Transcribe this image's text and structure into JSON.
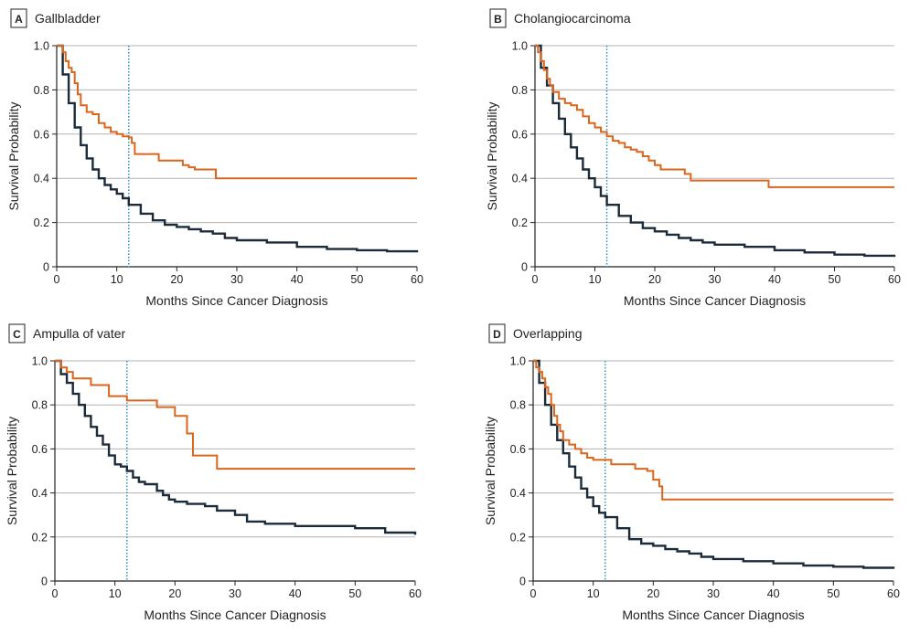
{
  "colors": {
    "overall": "#1c2b3a",
    "subgroup": "#d9661c",
    "marker": "#2a8fbd",
    "grid": "#b3b3b3",
    "axis": "#222222"
  },
  "chart_data": [
    {
      "type": "line",
      "panel_letter": "A",
      "title": "Gallbladder",
      "xlabel": "Months Since Cancer Diagnosis",
      "ylabel": "Survival Probability",
      "xlim": [
        0,
        60
      ],
      "ylim": [
        0,
        1
      ],
      "x_ticks": [
        "0",
        "10",
        "20",
        "30",
        "40",
        "50",
        "60"
      ],
      "y_ticks": [
        "0",
        "0.2",
        "0.4",
        "0.6",
        "0.8",
        "1.0"
      ],
      "grid": "horizontal",
      "reference_line_x": 12,
      "series": [
        {
          "color_key": "subgroup",
          "step": true,
          "x": [
            0,
            1,
            1.5,
            2,
            2.5,
            3,
            3.5,
            4,
            5,
            6,
            7,
            8,
            9,
            10,
            11,
            12,
            12.5,
            13,
            14,
            15,
            16,
            17,
            18,
            20,
            21,
            22,
            23,
            24,
            26.5,
            60
          ],
          "y": [
            1.0,
            0.97,
            0.93,
            0.9,
            0.88,
            0.83,
            0.78,
            0.73,
            0.7,
            0.69,
            0.65,
            0.63,
            0.61,
            0.6,
            0.59,
            0.585,
            0.56,
            0.51,
            0.51,
            0.51,
            0.51,
            0.48,
            0.48,
            0.48,
            0.46,
            0.45,
            0.44,
            0.44,
            0.4,
            0.4
          ]
        },
        {
          "color_key": "overall",
          "step": true,
          "x": [
            0,
            1,
            2,
            3,
            4,
            5,
            6,
            7,
            8,
            9,
            10,
            11,
            12,
            14,
            16,
            18,
            20,
            22,
            24,
            26,
            28,
            30,
            35,
            40,
            45,
            50,
            55,
            60
          ],
          "y": [
            1.0,
            0.87,
            0.74,
            0.63,
            0.55,
            0.49,
            0.44,
            0.4,
            0.37,
            0.35,
            0.33,
            0.31,
            0.28,
            0.24,
            0.21,
            0.19,
            0.18,
            0.17,
            0.16,
            0.15,
            0.13,
            0.12,
            0.11,
            0.09,
            0.08,
            0.075,
            0.07,
            0.065
          ]
        }
      ]
    },
    {
      "type": "line",
      "panel_letter": "B",
      "title": "Cholangiocarcinoma",
      "xlabel": "Months Since Cancer Diagnosis",
      "ylabel": "Survival Probability",
      "xlim": [
        0,
        60
      ],
      "ylim": [
        0,
        1
      ],
      "x_ticks": [
        "0",
        "10",
        "20",
        "30",
        "40",
        "50",
        "60"
      ],
      "y_ticks": [
        "0",
        "0.2",
        "0.4",
        "0.6",
        "0.8",
        "1.0"
      ],
      "grid": "horizontal",
      "reference_line_x": 12,
      "series": [
        {
          "color_key": "subgroup",
          "step": true,
          "x": [
            0,
            0.5,
            1,
            1.5,
            2,
            2.5,
            3,
            4,
            5,
            6,
            7,
            8,
            9,
            10,
            11,
            12,
            13,
            14,
            15,
            16,
            17,
            18,
            19,
            20,
            21,
            22,
            25,
            26,
            38.5,
            39,
            60
          ],
          "y": [
            1.0,
            0.97,
            0.93,
            0.89,
            0.85,
            0.82,
            0.79,
            0.76,
            0.74,
            0.73,
            0.71,
            0.68,
            0.65,
            0.63,
            0.61,
            0.59,
            0.57,
            0.56,
            0.54,
            0.53,
            0.52,
            0.5,
            0.48,
            0.46,
            0.44,
            0.44,
            0.42,
            0.39,
            0.39,
            0.36,
            0.36
          ]
        },
        {
          "color_key": "overall",
          "step": true,
          "x": [
            0,
            1,
            2,
            3,
            4,
            5,
            6,
            7,
            8,
            9,
            10,
            11,
            12,
            14,
            16,
            18,
            20,
            22,
            24,
            26,
            28,
            30,
            35,
            40,
            45,
            50,
            55,
            60
          ],
          "y": [
            1.0,
            0.9,
            0.82,
            0.74,
            0.67,
            0.6,
            0.54,
            0.49,
            0.44,
            0.4,
            0.36,
            0.32,
            0.28,
            0.23,
            0.2,
            0.175,
            0.16,
            0.145,
            0.13,
            0.12,
            0.11,
            0.1,
            0.09,
            0.075,
            0.065,
            0.055,
            0.05,
            0.045
          ]
        }
      ]
    },
    {
      "type": "line",
      "panel_letter": "C",
      "title": "Ampulla of vater",
      "xlabel": "Months Since Cancer Diagnosis",
      "ylabel": "Survival Probability",
      "xlim": [
        0,
        60
      ],
      "ylim": [
        0,
        1
      ],
      "x_ticks": [
        "0",
        "10",
        "20",
        "30",
        "40",
        "50",
        "60"
      ],
      "y_ticks": [
        "0",
        "0.2",
        "0.4",
        "0.6",
        "0.8",
        "1.0"
      ],
      "grid": "horizontal",
      "reference_line_x": 12,
      "series": [
        {
          "color_key": "subgroup",
          "step": true,
          "x": [
            0,
            1,
            2,
            3,
            6,
            9,
            12,
            14,
            17,
            18,
            20,
            21,
            22,
            23,
            27,
            60
          ],
          "y": [
            1.0,
            0.97,
            0.95,
            0.92,
            0.89,
            0.84,
            0.82,
            0.82,
            0.79,
            0.79,
            0.75,
            0.75,
            0.67,
            0.57,
            0.51,
            0.51
          ]
        },
        {
          "color_key": "overall",
          "step": true,
          "x": [
            0,
            1,
            2,
            3,
            4,
            5,
            6,
            7,
            8,
            9,
            10,
            11,
            12,
            13,
            14,
            15,
            17,
            18,
            19,
            20,
            22,
            25,
            27,
            30,
            32,
            35,
            40,
            45,
            50,
            55,
            60
          ],
          "y": [
            1.0,
            0.94,
            0.9,
            0.85,
            0.8,
            0.75,
            0.7,
            0.66,
            0.62,
            0.57,
            0.53,
            0.52,
            0.5,
            0.47,
            0.45,
            0.44,
            0.41,
            0.39,
            0.37,
            0.36,
            0.35,
            0.34,
            0.32,
            0.3,
            0.27,
            0.26,
            0.25,
            0.25,
            0.24,
            0.22,
            0.21
          ]
        }
      ]
    },
    {
      "type": "line",
      "panel_letter": "D",
      "title": "Overlapping",
      "xlabel": "Months Since Cancer Diagnosis",
      "ylabel": "Survival Probability",
      "xlim": [
        0,
        60
      ],
      "ylim": [
        0,
        1
      ],
      "x_ticks": [
        "0",
        "10",
        "20",
        "30",
        "40",
        "50",
        "60"
      ],
      "y_ticks": [
        "0",
        "0.2",
        "0.4",
        "0.6",
        "0.8",
        "1.0"
      ],
      "grid": "horizontal",
      "reference_line_x": 12,
      "series": [
        {
          "color_key": "subgroup",
          "step": true,
          "x": [
            0,
            0.5,
            1,
            1.5,
            2,
            2.5,
            3,
            3.5,
            4,
            4.5,
            5,
            6,
            7,
            8,
            9,
            10,
            12,
            13,
            15,
            17,
            19,
            20,
            21,
            21.5,
            60
          ],
          "y": [
            1.0,
            0.97,
            0.95,
            0.92,
            0.88,
            0.85,
            0.8,
            0.75,
            0.71,
            0.68,
            0.64,
            0.62,
            0.6,
            0.58,
            0.56,
            0.55,
            0.55,
            0.53,
            0.53,
            0.51,
            0.5,
            0.46,
            0.43,
            0.37,
            0.37
          ]
        },
        {
          "color_key": "overall",
          "step": true,
          "x": [
            0,
            1,
            2,
            3,
            4,
            5,
            6,
            7,
            8,
            9,
            10,
            11,
            12,
            14,
            16,
            18,
            20,
            22,
            24,
            26,
            28,
            30,
            35,
            40,
            45,
            50,
            55,
            60
          ],
          "y": [
            1.0,
            0.9,
            0.8,
            0.71,
            0.64,
            0.58,
            0.52,
            0.47,
            0.42,
            0.38,
            0.34,
            0.31,
            0.29,
            0.24,
            0.19,
            0.17,
            0.16,
            0.145,
            0.135,
            0.125,
            0.11,
            0.1,
            0.09,
            0.08,
            0.07,
            0.065,
            0.06,
            0.055
          ]
        }
      ]
    }
  ]
}
